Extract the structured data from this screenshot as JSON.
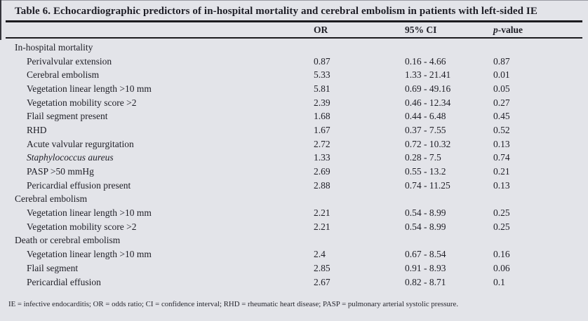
{
  "title": "Table 6. Echocardiographic predictors of in-hospital mortality and cerebral embolism in patients with left-sided IE",
  "header": {
    "or": "OR",
    "ci": "95% CI",
    "p_italic": "p",
    "p_rest": "-value"
  },
  "rows": [
    {
      "label": "In-hospital mortality",
      "type": "section"
    },
    {
      "label": "Perivalvular extension",
      "or": "0.87",
      "ci": "0.16 - 4.66",
      "p": "0.87"
    },
    {
      "label": "Cerebral embolism",
      "or": "5.33",
      "ci": "1.33 - 21.41",
      "p": "0.01"
    },
    {
      "label": "Vegetation linear length >10 mm",
      "or": "5.81",
      "ci": "0.69 - 49.16",
      "p": "0.05"
    },
    {
      "label": "Vegetation mobility score >2",
      "or": "2.39",
      "ci": "0.46 - 12.34",
      "p": "0.27"
    },
    {
      "label": "Flail segment present",
      "or": "1.68",
      "ci": "0.44 - 6.48",
      "p": "0.45"
    },
    {
      "label": "RHD",
      "or": "1.67",
      "ci": "0.37 - 7.55",
      "p": "0.52"
    },
    {
      "label": "Acute valvular regurgitation",
      "or": "2.72",
      "ci": "0.72 - 10.32",
      "p": "0.13"
    },
    {
      "label": "Staphylococcus aureus",
      "italic": true,
      "or": "1.33",
      "ci": "0.28 - 7.5",
      "p": "0.74"
    },
    {
      "label": "PASP >50 mmHg",
      "or": "2.69",
      "ci": "0.55 - 13.2",
      "p": "0.21"
    },
    {
      "label": "Pericardial effusion present",
      "or": "2.88",
      "ci": "0.74 - 11.25",
      "p": "0.13"
    },
    {
      "label": "Cerebral embolism",
      "type": "section"
    },
    {
      "label": "Vegetation linear length >10 mm",
      "or": "2.21",
      "ci": "0.54 - 8.99",
      "p": "0.25"
    },
    {
      "label": "Vegetation mobility score >2",
      "or": "2.21",
      "ci": "0.54 - 8.99",
      "p": "0.25"
    },
    {
      "label": "Death or cerebral embolism",
      "type": "section"
    },
    {
      "label": "Vegetation linear length >10 mm",
      "or": "2.4",
      "ci": "0.67 - 8.54",
      "p": "0.16"
    },
    {
      "label": "Flail segment",
      "or": "2.85",
      "ci": "0.91 - 8.93",
      "p": "0.06"
    },
    {
      "label": "Pericardial effusion",
      "or": "2.67",
      "ci": "0.82 - 8.71",
      "p": "0.1"
    }
  ],
  "footnote": "IE = infective endocarditis; OR = odds ratio; CI = confidence interval; RHD = rheumatic heart disease; PASP = pulmonary arterial systolic pressure.",
  "colors": {
    "background": "#e3e4e9",
    "rule": "#1b1b1f",
    "text": "#1e1e26"
  }
}
